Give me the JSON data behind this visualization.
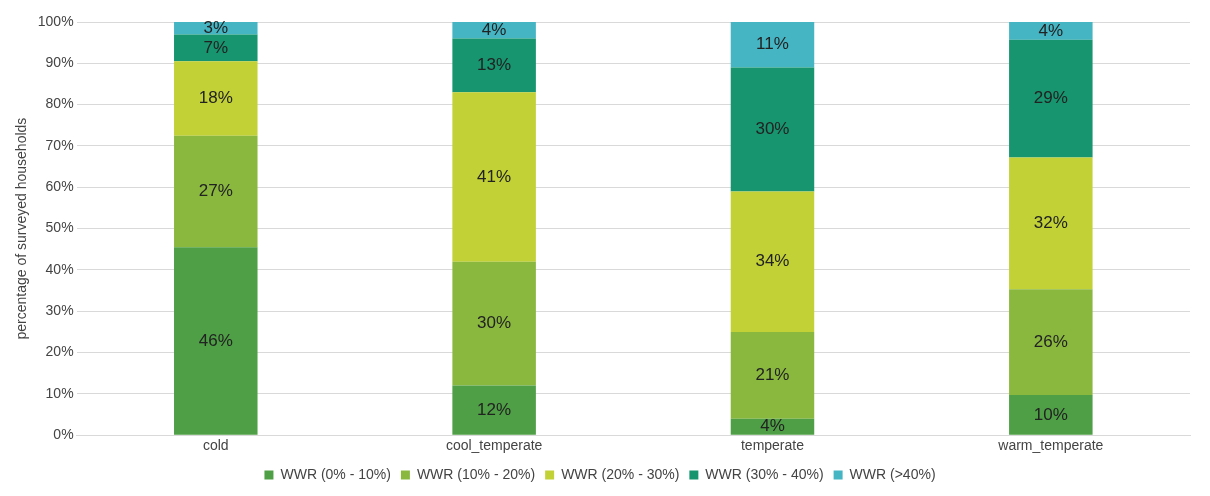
{
  "chart_data": {
    "type": "bar",
    "stacked": true,
    "ylabel": "percentage of surveyed households",
    "categories": [
      "cold",
      "cool_temperate",
      "temperate",
      "warm_temperate"
    ],
    "series": [
      {
        "name": "WWR (0% - 10%)",
        "color": "#4e9f45",
        "values": [
          45.5,
          12,
          4,
          9.7
        ],
        "value_labels": [
          "46%",
          "12%",
          "4%",
          "10%"
        ]
      },
      {
        "name": "WWR (10% - 20%)",
        "color": "#8ab83f",
        "values": [
          27,
          30,
          21,
          25.6
        ],
        "value_labels": [
          "27%",
          "30%",
          "21%",
          "26%"
        ]
      },
      {
        "name": "WWR (20% - 30%)",
        "color": "#c2d136",
        "values": [
          18,
          41,
          34,
          31.9
        ],
        "value_labels": [
          "18%",
          "41%",
          "34%",
          "32%"
        ]
      },
      {
        "name": "WWR (30% - 40%)",
        "color": "#16956f",
        "values": [
          6.5,
          13,
          30,
          28.5
        ],
        "value_labels": [
          "7%",
          "13%",
          "30%",
          "29%"
        ]
      },
      {
        "name": "WWR (>40%)",
        "color": "#45b5c4",
        "values": [
          3,
          4,
          11,
          4.3
        ],
        "value_labels": [
          "3%",
          "4%",
          "11%",
          "4%"
        ]
      }
    ],
    "ylim": [
      0,
      100
    ],
    "yticks": [
      {
        "value": 0,
        "label": "0%"
      },
      {
        "value": 10,
        "label": "10%"
      },
      {
        "value": 20,
        "label": "20%"
      },
      {
        "value": 30,
        "label": "30%"
      },
      {
        "value": 40,
        "label": "40%"
      },
      {
        "value": 50,
        "label": "50%"
      },
      {
        "value": 60,
        "label": "60%"
      },
      {
        "value": 70,
        "label": "70%"
      },
      {
        "value": 80,
        "label": "80%"
      },
      {
        "value": 90,
        "label": "90%"
      },
      {
        "value": 100,
        "label": "100%"
      }
    ],
    "grid": "y",
    "legend": "bottom"
  }
}
